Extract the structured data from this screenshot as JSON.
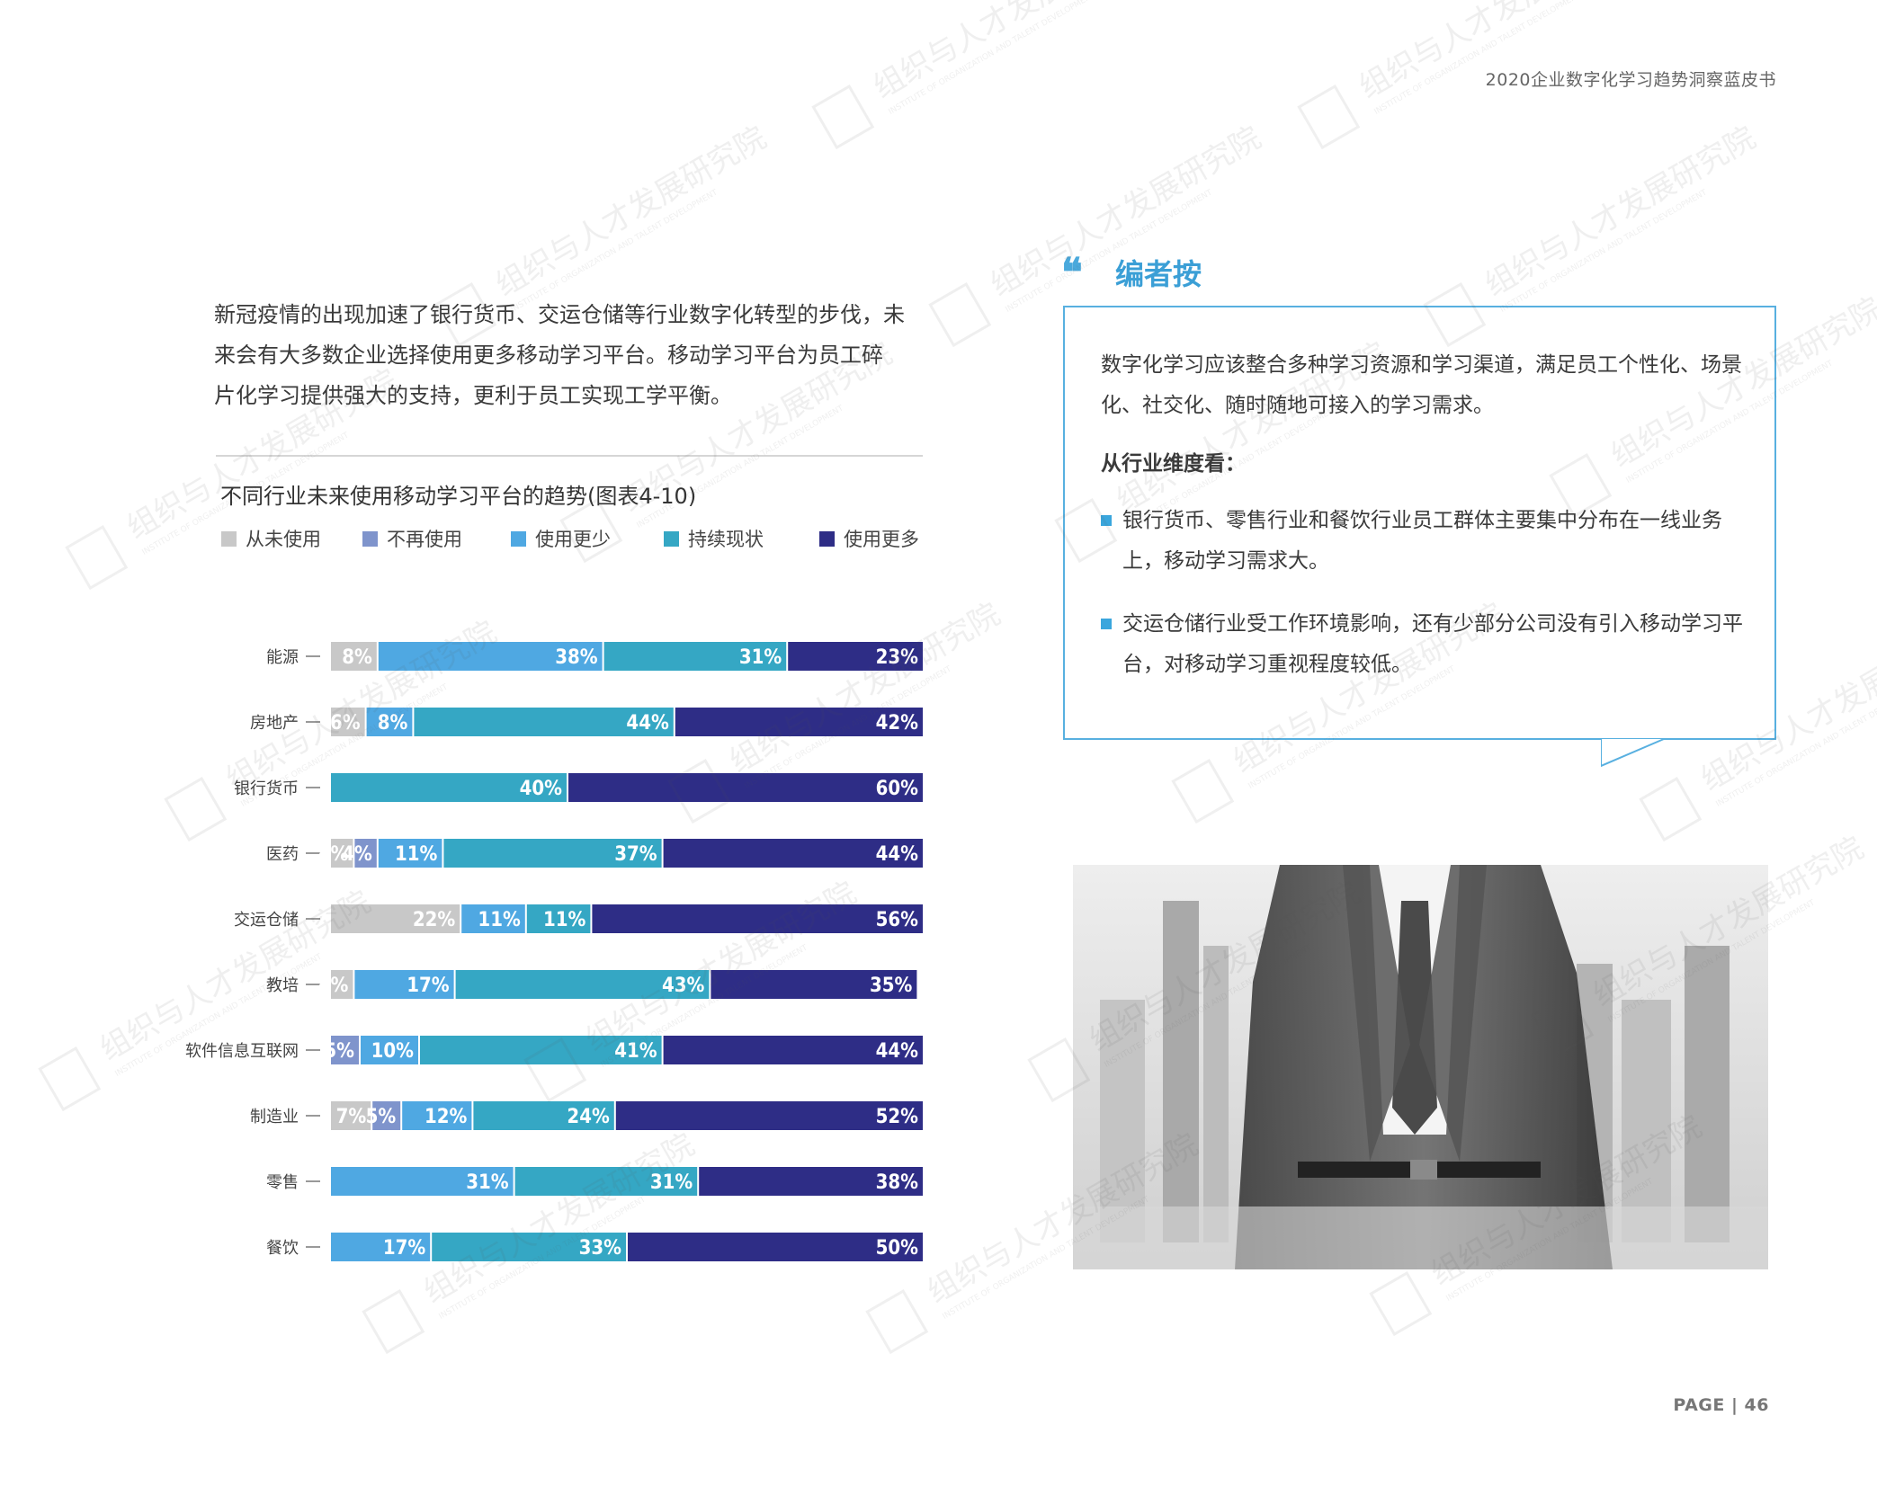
{
  "header": {
    "title": "2020企业数字化学习趋势洞察蓝皮书"
  },
  "intro": {
    "lines": [
      "新冠疫情的出现加速了银行货币、交运仓储等行业数字化转型的步伐，未",
      "来会有大多数企业选择使用更多移动学习平台。移动学习平台为员工碎",
      "片化学习提供强大的支持，更利于员工实现工学平衡。"
    ]
  },
  "chart_data": {
    "type": "bar",
    "orientation": "horizontal",
    "stacked": true,
    "percent_stacked": true,
    "title": "不同行业未来使用移动学习平台的趋势(图表4-10)",
    "legend_position": "top",
    "categories": [
      "能源",
      "房地产",
      "银行货币",
      "医药",
      "交运仓储",
      "教培",
      "软件信息互联网",
      "制造业",
      "零售",
      "餐饮"
    ],
    "series": [
      {
        "name": "从未使用",
        "color": "#c8c8c8",
        "values": [
          8,
          6,
          0,
          4,
          22,
          4,
          0,
          7,
          0,
          0
        ]
      },
      {
        "name": "不再使用",
        "color": "#7f94cc",
        "values": [
          0,
          0,
          0,
          4,
          0,
          0,
          5,
          5,
          0,
          0
        ]
      },
      {
        "name": "使用更少",
        "color": "#4fa8e2",
        "values": [
          38,
          8,
          0,
          11,
          11,
          17,
          10,
          12,
          31,
          17
        ]
      },
      {
        "name": "持续现状",
        "color": "#35a7c4",
        "values": [
          31,
          44,
          40,
          37,
          11,
          43,
          41,
          24,
          31,
          33
        ]
      },
      {
        "name": "使用更多",
        "color": "#2e2d86",
        "values": [
          23,
          42,
          60,
          44,
          56,
          35,
          44,
          52,
          38,
          50
        ]
      }
    ]
  },
  "editor": {
    "quote_mark": "❝",
    "title": "编者按",
    "paragraph": "数字化学习应该整合多种学习资源和学习渠道，满足员工个性化、场景化、社交化、随时随地可接入的学习需求。",
    "subheading": "从行业维度看：",
    "bullets": [
      "银行货币、零售行业和餐饮行业员工群体主要集中分布在一线业务上，移动学习需求大。",
      "交运仓储行业受工作环境影响，还有少部分公司没有引入移动学习平台，对移动学习重视程度较低。"
    ]
  },
  "footer": {
    "page": "PAGE | 46"
  },
  "watermark": {
    "text": "组织与人才发展研究院",
    "subtext": "INSTITUTE OF ORGANIZATION AND TALENT DEVELOPMENT",
    "logo": "IOTD"
  }
}
